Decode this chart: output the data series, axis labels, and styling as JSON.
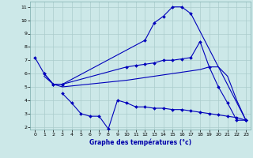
{
  "background_color": "#cce8e8",
  "grid_color": "#aacccc",
  "line_color": "#0000bb",
  "xlabel": "Graphe des températures (°c)",
  "xlabel_color": "#0000aa",
  "xlim": [
    -0.5,
    23.5
  ],
  "ylim": [
    1.8,
    11.4
  ],
  "yticks": [
    2,
    3,
    4,
    5,
    6,
    7,
    8,
    9,
    10,
    11
  ],
  "xticks": [
    0,
    1,
    2,
    3,
    4,
    5,
    6,
    7,
    8,
    9,
    10,
    11,
    12,
    13,
    14,
    15,
    16,
    17,
    18,
    19,
    20,
    21,
    22,
    23
  ],
  "series": {
    "curve1": {
      "x": [
        0,
        1,
        2,
        3,
        12,
        13,
        14,
        15,
        16,
        17,
        23
      ],
      "y": [
        7.2,
        6.0,
        5.2,
        5.2,
        8.5,
        9.8,
        10.3,
        11.0,
        11.0,
        10.5,
        2.5
      ],
      "markers": true
    },
    "curve2": {
      "x": [
        1,
        2,
        3,
        10,
        11,
        12,
        13,
        14,
        15,
        16,
        17,
        18,
        19,
        20,
        21,
        22,
        23
      ],
      "y": [
        6.0,
        5.2,
        5.2,
        6.5,
        6.6,
        6.7,
        6.8,
        7.0,
        7.0,
        7.1,
        7.2,
        8.4,
        6.5,
        5.0,
        3.8,
        2.5,
        2.5
      ],
      "markers": true
    },
    "curve3": {
      "x": [
        1,
        2,
        3,
        10,
        11,
        12,
        13,
        14,
        15,
        16,
        17,
        18,
        19,
        20,
        21,
        22,
        23
      ],
      "y": [
        5.8,
        5.2,
        5.0,
        5.5,
        5.6,
        5.7,
        5.8,
        5.9,
        6.0,
        6.1,
        6.2,
        6.3,
        6.5,
        6.5,
        5.8,
        4.0,
        2.5
      ],
      "markers": false
    },
    "curve4": {
      "x": [
        3,
        4,
        5,
        6,
        7,
        8,
        9,
        10,
        11,
        12,
        13,
        14,
        15,
        16,
        17,
        18,
        19,
        20,
        21,
        22,
        23
      ],
      "y": [
        4.5,
        3.8,
        3.0,
        2.8,
        2.8,
        1.85,
        4.0,
        3.8,
        3.5,
        3.5,
        3.4,
        3.4,
        3.3,
        3.3,
        3.2,
        3.1,
        3.0,
        2.9,
        2.8,
        2.7,
        2.5
      ],
      "markers": true
    }
  }
}
